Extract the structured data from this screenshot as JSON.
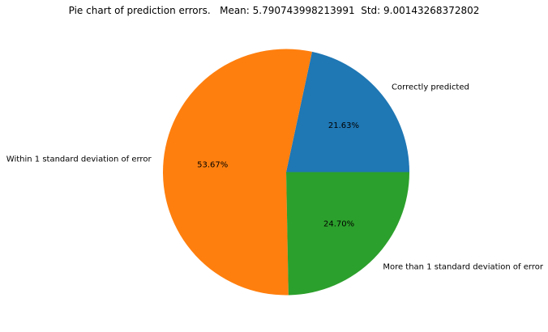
{
  "chart_data": {
    "type": "pie",
    "title": "Pie chart of prediction errors.   Mean: 5.790743998213991  Std: 9.00143268372802",
    "categories": [
      "Correctly predicted",
      "Within 1 standard deviation of error",
      "More than 1 standard deviation of error"
    ],
    "values": [
      21.63,
      53.67,
      24.7
    ],
    "percent_labels": [
      "21.63%",
      "53.67%",
      "24.70%"
    ],
    "colors": [
      "#1f77b4",
      "#ff7f0e",
      "#2ca02c"
    ],
    "start_angle_deg": 0,
    "direction": "counterclockwise",
    "legend": "none"
  }
}
